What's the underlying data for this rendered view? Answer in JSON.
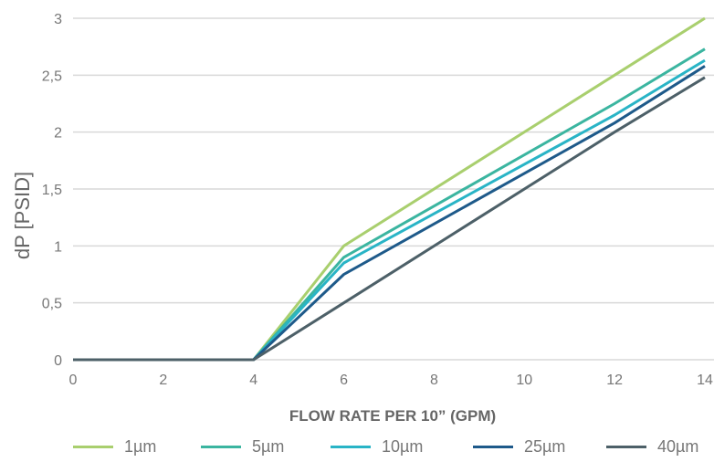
{
  "chart_data": {
    "type": "line",
    "title": "",
    "xlabel": "FLOW RATE PER 10” (GPM)",
    "ylabel": "dP [PSID]",
    "xlim": [
      0,
      14
    ],
    "ylim": [
      0,
      3
    ],
    "x_ticks": [
      "0",
      "2",
      "4",
      "6",
      "8",
      "10",
      "12",
      "14"
    ],
    "y_ticks": [
      "0",
      "0,5",
      "1",
      "1,5",
      "2",
      "2,5",
      "3"
    ],
    "grid": "horizontal",
    "legend_position": "bottom",
    "x": [
      0,
      4,
      6,
      12,
      14
    ],
    "series": [
      {
        "name": "1µm",
        "color": "#a9cf6e",
        "values": [
          0,
          0,
          1.0,
          2.5,
          3.0
        ]
      },
      {
        "name": "5µm",
        "color": "#3bb5a0",
        "values": [
          0,
          0,
          0.9,
          2.25,
          2.73
        ]
      },
      {
        "name": "10µm",
        "color": "#29b4c6",
        "values": [
          0,
          0,
          0.85,
          2.15,
          2.63
        ]
      },
      {
        "name": "25µm",
        "color": "#1e5a8a",
        "values": [
          0,
          0,
          0.75,
          2.08,
          2.58
        ]
      },
      {
        "name": "40µm",
        "color": "#4d6068",
        "values": [
          0,
          0,
          0.5,
          2.0,
          2.48
        ]
      }
    ]
  }
}
